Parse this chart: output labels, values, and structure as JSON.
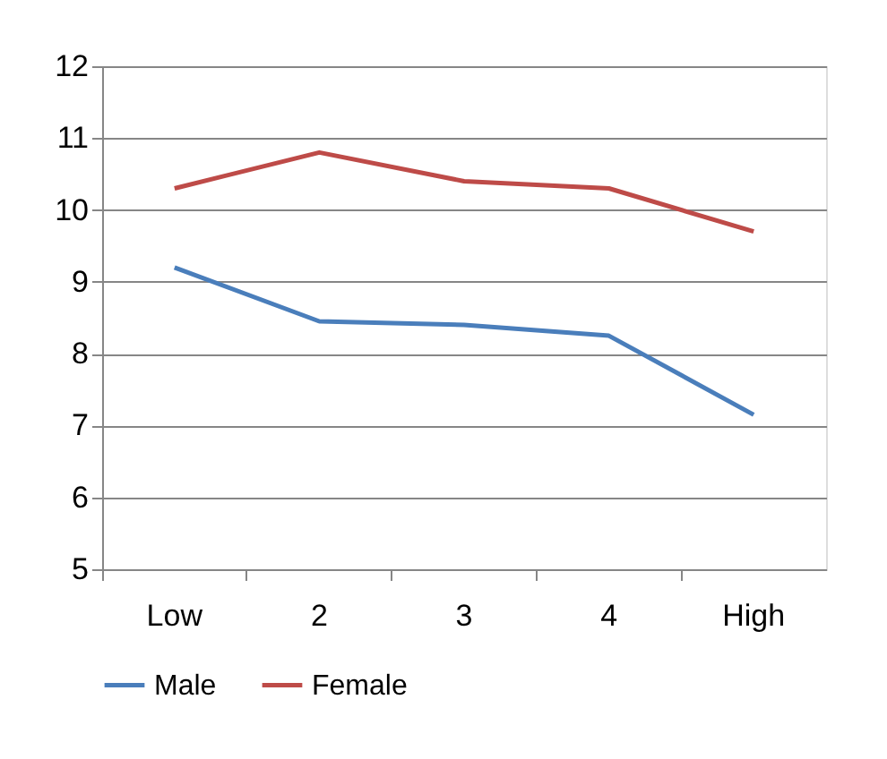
{
  "chart_data": {
    "type": "line",
    "categories": [
      "Low",
      "2",
      "3",
      "4",
      "High"
    ],
    "series": [
      {
        "name": "Male",
        "color": "#4a7ebb",
        "values": [
          9.2,
          8.45,
          8.4,
          8.25,
          7.15
        ]
      },
      {
        "name": "Female",
        "color": "#be4b48",
        "values": [
          10.3,
          10.8,
          10.4,
          10.3,
          9.7
        ]
      }
    ],
    "ylim": [
      5,
      12
    ],
    "yticks": [
      5,
      6,
      7,
      8,
      9,
      10,
      11,
      12
    ],
    "grid": "y",
    "legend": "bottom",
    "marker": "none",
    "line_style": "solid"
  }
}
